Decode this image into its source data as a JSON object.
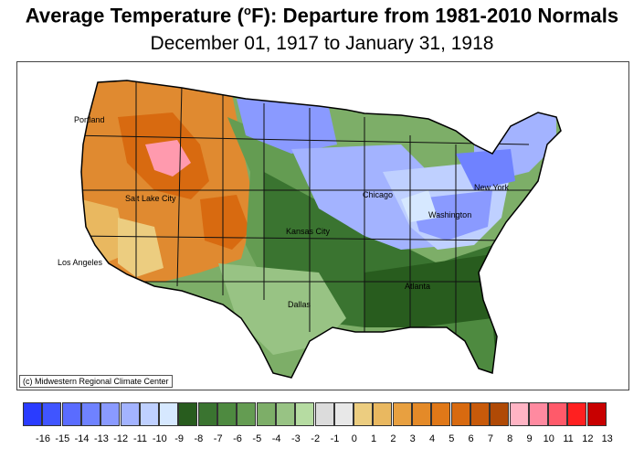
{
  "title_main": "Average Temperature (",
  "title_sup": "o",
  "title_tail": "F): Departure from 1981-2010 Normals",
  "subtitle": "December 01, 1917 to January 31, 1918",
  "credit": "(c) Midwestern Regional Climate Center",
  "cities": [
    {
      "name": "Portland"
    },
    {
      "name": "Salt Lake City"
    },
    {
      "name": "Los Angeles"
    },
    {
      "name": "Kansas City"
    },
    {
      "name": "Dallas"
    },
    {
      "name": "Chicago"
    },
    {
      "name": "Atlanta"
    },
    {
      "name": "Washington"
    },
    {
      "name": "New York"
    }
  ],
  "legend": {
    "swatches": [
      "#2a3cff",
      "#4055ff",
      "#5a6cff",
      "#6f82ff",
      "#8a9aff",
      "#a3b3ff",
      "#bfd0ff",
      "#d6e8ff",
      "#285c1e",
      "#3a7430",
      "#4e8a40",
      "#649c52",
      "#7dae68",
      "#98c384",
      "#b6dca2",
      "#dcdcdc",
      "#e8e8e8",
      "#eccd80",
      "#e9b860",
      "#e8a040",
      "#e48a28",
      "#e07818",
      "#d86a10",
      "#c85a0a",
      "#b04a06",
      "#ffb4c4",
      "#ff8aa0",
      "#ff5a6a",
      "#ff2020",
      "#c80000"
    ],
    "labels": [
      "-16",
      "-15",
      "-14",
      "-13",
      "-12",
      "-11",
      "-10",
      "-9",
      "-8",
      "-7",
      "-6",
      "-5",
      "-4",
      "-3",
      "-2",
      "-1",
      "0",
      "1",
      "2",
      "3",
      "4",
      "5",
      "6",
      "7",
      "8",
      "9",
      "10",
      "11",
      "12",
      "13"
    ]
  },
  "colors": {
    "orange": "#e08a30",
    "green": "#4e8a40",
    "blue": "#a8c0ff"
  }
}
